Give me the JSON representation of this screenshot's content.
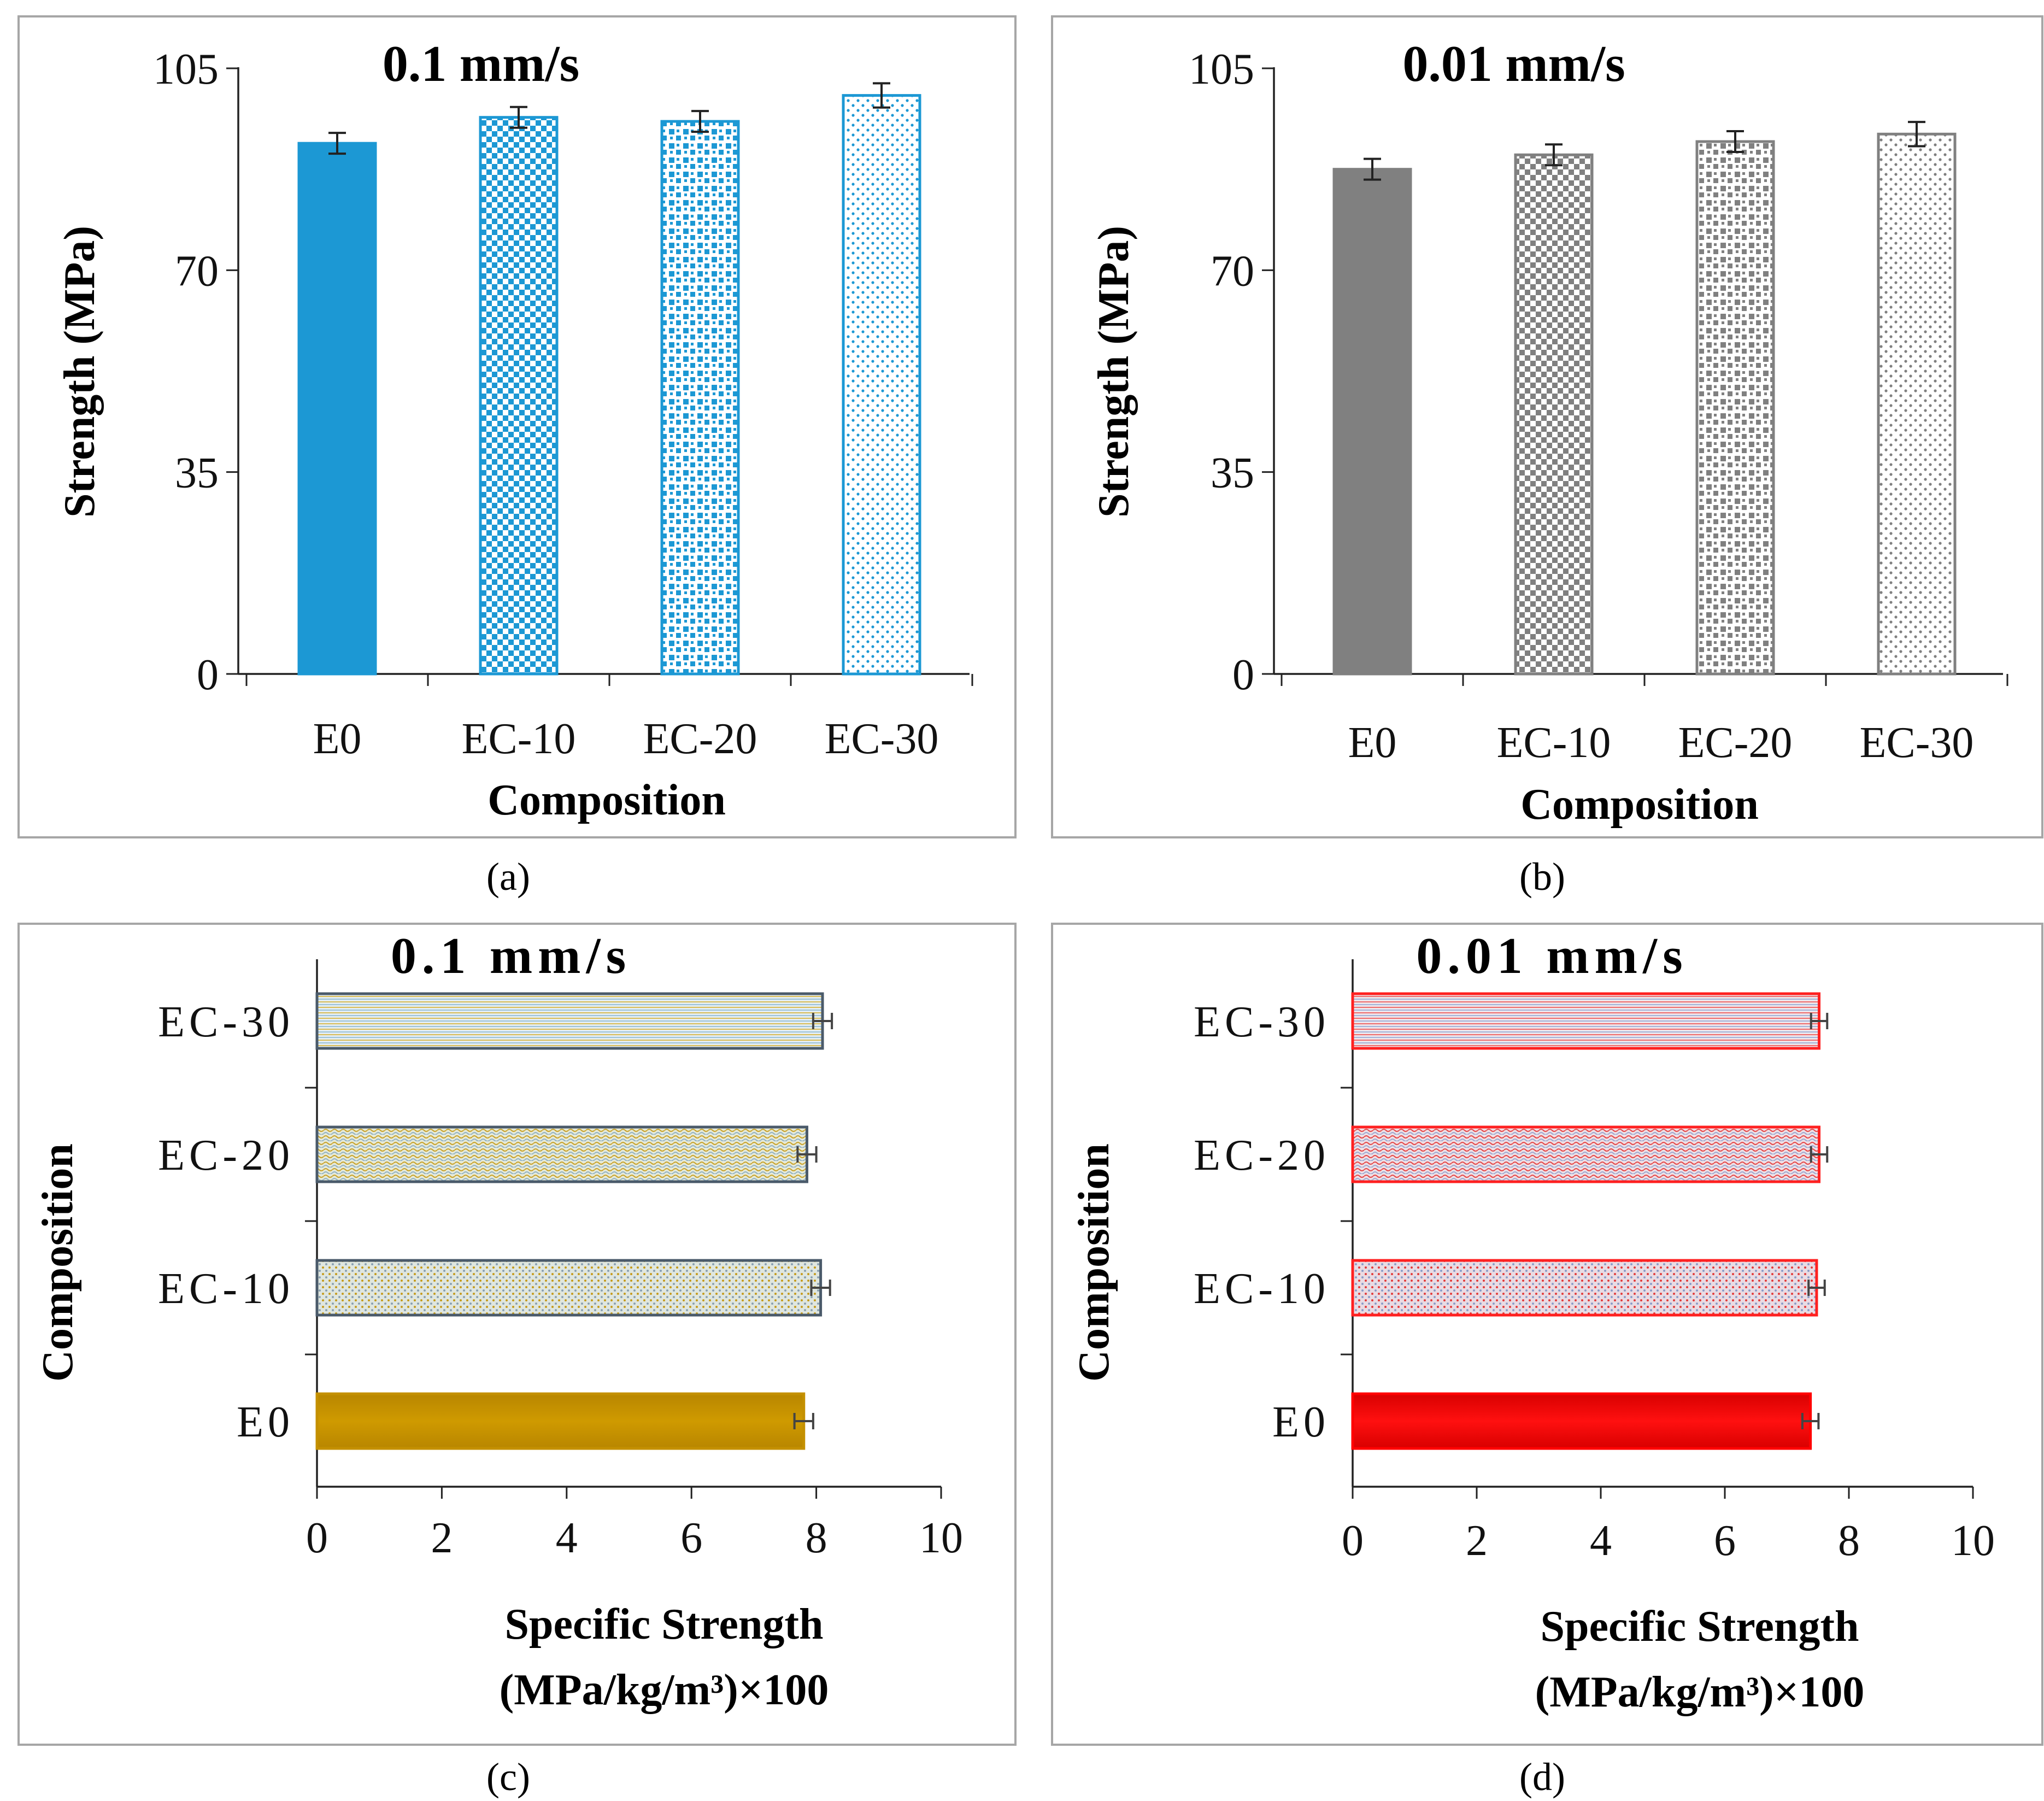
{
  "figure": {
    "panels": [
      {
        "id": "a",
        "caption": "(a)"
      },
      {
        "id": "b",
        "caption": "(b)"
      },
      {
        "id": "c",
        "caption": "(c)"
      },
      {
        "id": "d",
        "caption": "(d)"
      }
    ]
  },
  "chart_data": [
    {
      "panel": "a",
      "type": "bar",
      "orientation": "vertical",
      "title": "0.1 mm/s",
      "xlabel": "Composition",
      "ylabel": "Strength (MPa)",
      "categories": [
        "E0",
        "EC-10",
        "EC-20",
        "EC-30"
      ],
      "values": [
        92,
        96.5,
        95.8,
        100.3
      ],
      "errors": [
        1.8,
        1.8,
        1.8,
        2.1
      ],
      "ylim": [
        0,
        105
      ],
      "yticks": [
        0,
        35,
        70,
        105
      ],
      "colors": {
        "main": "#1c98d4",
        "edge": "#1c98d4"
      },
      "patterns": [
        "solid",
        "checker",
        "checker-small",
        "dots"
      ]
    },
    {
      "panel": "b",
      "type": "bar",
      "orientation": "vertical",
      "title": "0.01 mm/s",
      "xlabel": "Composition",
      "ylabel": "Strength (MPa)",
      "categories": [
        "E0",
        "EC-10",
        "EC-20",
        "EC-30"
      ],
      "values": [
        87.5,
        90,
        92.3,
        93.6
      ],
      "errors": [
        1.8,
        1.8,
        1.8,
        2.1
      ],
      "ylim": [
        0,
        105
      ],
      "yticks": [
        0,
        35,
        70,
        105
      ],
      "colors": {
        "main": "#808080",
        "edge": "#808080"
      },
      "patterns": [
        "solid",
        "checker",
        "checker-small",
        "dots"
      ]
    },
    {
      "panel": "c",
      "type": "bar",
      "orientation": "horizontal",
      "title": "0.1 mm/s",
      "ylabel": "Composition",
      "xlabel_line1": "Specific Strength",
      "xlabel_line2": "(MPa/kg/m³)×100",
      "categories": [
        "E0",
        "EC-10",
        "EC-20",
        "EC-30"
      ],
      "values": [
        7.8,
        8.07,
        7.85,
        8.1
      ],
      "errors": [
        0.15,
        0.15,
        0.15,
        0.15
      ],
      "xlim": [
        0,
        10
      ],
      "xticks": [
        0,
        2,
        4,
        6,
        8,
        10
      ],
      "colors": {
        "main": "#c49000",
        "edge": "#4a5a6a",
        "fill": "#dfe3d7"
      },
      "patterns": [
        "solid",
        "dots",
        "wave",
        "stripe"
      ]
    },
    {
      "panel": "d",
      "type": "bar",
      "orientation": "horizontal",
      "title": "0.01 mm/s",
      "ylabel": "Composition",
      "xlabel_line1": "Specific Strength",
      "xlabel_line2": "(MPa/kg/m³)×100",
      "categories": [
        "E0",
        "EC-10",
        "EC-20",
        "EC-30"
      ],
      "values": [
        7.38,
        7.48,
        7.52,
        7.52
      ],
      "errors": [
        0.13,
        0.13,
        0.13,
        0.13
      ],
      "xlim": [
        0,
        10
      ],
      "xticks": [
        0,
        2,
        4,
        6,
        8,
        10
      ],
      "colors": {
        "main": "#ff0000",
        "edge": "#ff2020",
        "fill": "#e8d3dd"
      },
      "patterns": [
        "solid",
        "dots",
        "wave",
        "stripe"
      ]
    }
  ]
}
